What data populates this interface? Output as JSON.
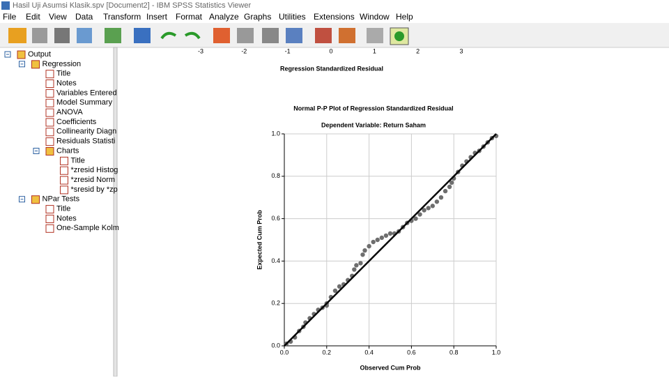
{
  "window": {
    "title": "Hasil Uji Asumsi Klasik.spv [Document2] - IBM SPSS Statistics Viewer"
  },
  "menu": [
    "File",
    "Edit",
    "View",
    "Data",
    "Transform",
    "Insert",
    "Format",
    "Analyze",
    "Graphs",
    "Utilities",
    "Extensions",
    "Window",
    "Help"
  ],
  "tree": {
    "label": "Output",
    "children": [
      {
        "label": "Regression",
        "children": [
          {
            "label": "Title"
          },
          {
            "label": "Notes"
          },
          {
            "label": "Variables Entered"
          },
          {
            "label": "Model Summary"
          },
          {
            "label": "ANOVA"
          },
          {
            "label": "Coefficients"
          },
          {
            "label": "Collinearity Diagn"
          },
          {
            "label": "Residuals Statisti"
          },
          {
            "label": "Charts",
            "children": [
              {
                "label": "Title"
              },
              {
                "label": "*zresid Histog"
              },
              {
                "label": "*zresid Norm"
              },
              {
                "label": "*sresid by *zp"
              }
            ]
          }
        ]
      },
      {
        "label": "NPar Tests",
        "children": [
          {
            "label": "Title"
          },
          {
            "label": "Notes"
          },
          {
            "label": "One-Sample Kolm"
          }
        ]
      }
    ]
  },
  "previous_chart": {
    "xticks": [
      -3,
      -2,
      -1,
      0,
      1,
      2,
      3
    ],
    "xlim": [
      -3,
      3
    ],
    "xlabel": "Regression Standardized Residual"
  },
  "chart_data": {
    "type": "scatter",
    "title": "Normal P-P Plot of Regression Standardized Residual",
    "subtitle": "Dependent Variable: Return Saham",
    "xlabel": "Observed Cum Prob",
    "ylabel": "Expected Cum Prob",
    "x": [
      0.01,
      0.03,
      0.05,
      0.07,
      0.09,
      0.1,
      0.12,
      0.14,
      0.16,
      0.18,
      0.2,
      0.2,
      0.22,
      0.24,
      0.26,
      0.28,
      0.3,
      0.32,
      0.33,
      0.34,
      0.36,
      0.37,
      0.38,
      0.4,
      0.42,
      0.44,
      0.46,
      0.48,
      0.5,
      0.52,
      0.54,
      0.56,
      0.58,
      0.6,
      0.62,
      0.64,
      0.66,
      0.68,
      0.7,
      0.72,
      0.74,
      0.76,
      0.78,
      0.79,
      0.8,
      0.82,
      0.84,
      0.86,
      0.88,
      0.9,
      0.92,
      0.94,
      0.96,
      0.98,
      1.0
    ],
    "y": [
      0.01,
      0.02,
      0.04,
      0.07,
      0.09,
      0.11,
      0.13,
      0.15,
      0.17,
      0.18,
      0.19,
      0.2,
      0.23,
      0.26,
      0.28,
      0.29,
      0.31,
      0.33,
      0.36,
      0.38,
      0.39,
      0.43,
      0.45,
      0.47,
      0.49,
      0.5,
      0.51,
      0.52,
      0.53,
      0.53,
      0.54,
      0.56,
      0.58,
      0.59,
      0.6,
      0.62,
      0.64,
      0.65,
      0.66,
      0.68,
      0.7,
      0.73,
      0.75,
      0.77,
      0.79,
      0.82,
      0.85,
      0.87,
      0.89,
      0.91,
      0.92,
      0.94,
      0.96,
      0.98,
      0.99
    ],
    "color": "#6e6e6e",
    "xlim": [
      0,
      1
    ],
    "ylim": [
      0,
      1
    ],
    "xticks": [
      {
        "value": 0,
        "label": "0.0"
      },
      {
        "value": 0.2,
        "label": "0.2"
      },
      {
        "value": 0.4,
        "label": "0.4"
      },
      {
        "value": 0.6,
        "label": "0.6"
      },
      {
        "value": 0.8,
        "label": "0.8"
      },
      {
        "value": 1,
        "label": "1.0"
      }
    ],
    "yticks": [
      {
        "value": 0,
        "label": "0.0"
      },
      {
        "value": 0.2,
        "label": "0.2"
      },
      {
        "value": 0.4,
        "label": "0.4"
      },
      {
        "value": 0.6,
        "label": "0.6"
      },
      {
        "value": 0.8,
        "label": "0.8"
      },
      {
        "value": 1,
        "label": "1.0"
      }
    ],
    "grid": true
  }
}
